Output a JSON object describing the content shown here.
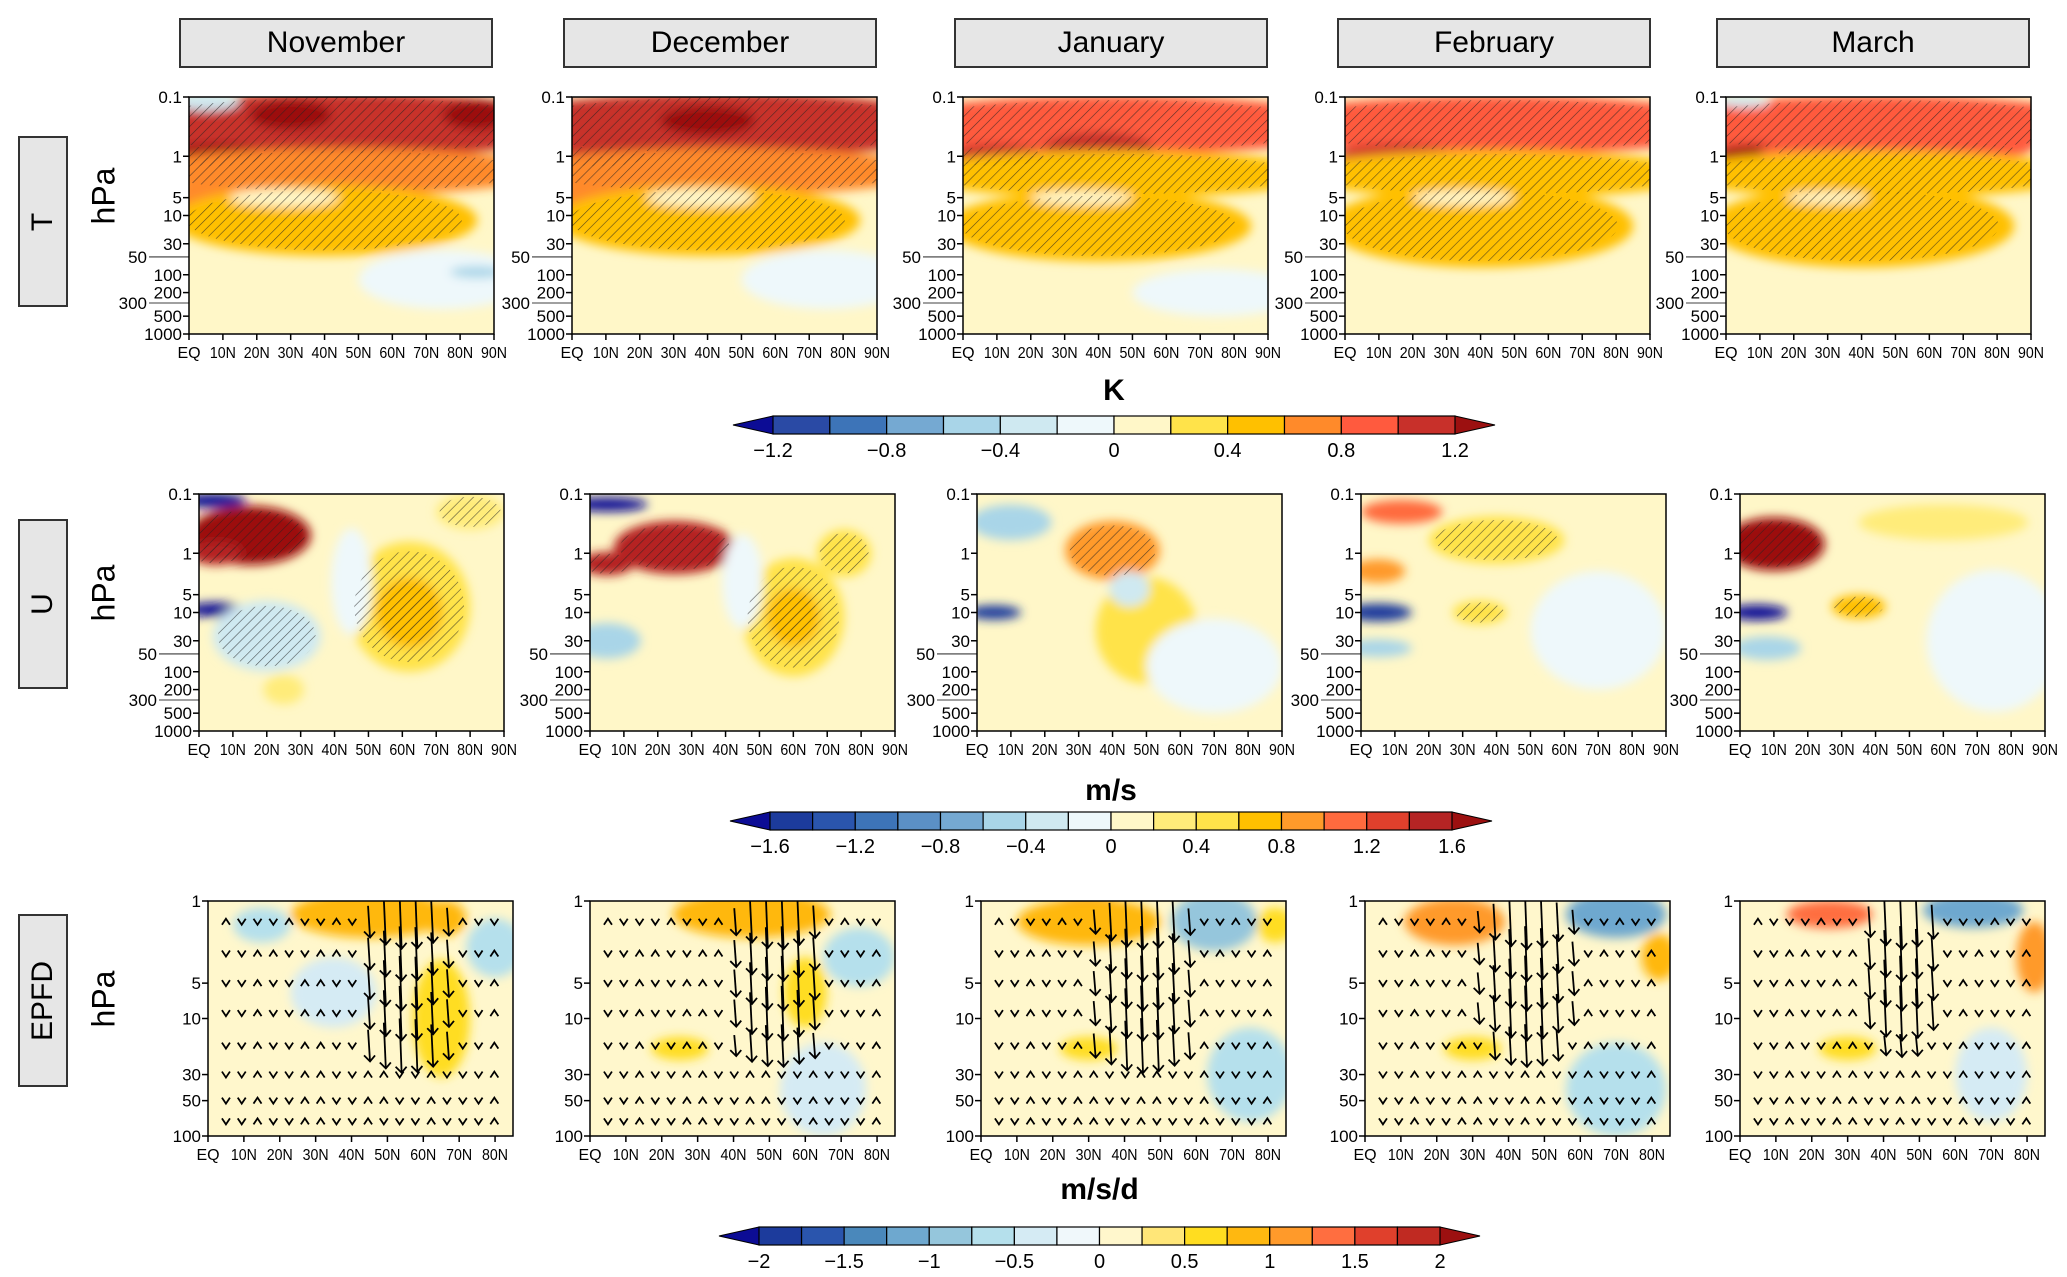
{
  "months": [
    "November",
    "December",
    "January",
    "February",
    "March"
  ],
  "rows": [
    {
      "label": "T",
      "ylabel": "hPa"
    },
    {
      "label": "U",
      "ylabel": "hPa"
    },
    {
      "label": "EPFD",
      "ylabel": "hPa"
    }
  ],
  "chart_data": [
    {
      "type": "heatmap",
      "variable": "T",
      "panels": [
        "November",
        "December",
        "January",
        "February",
        "March"
      ],
      "x_ticks": [
        "EQ",
        "10N",
        "20N",
        "30N",
        "40N",
        "50N",
        "60N",
        "70N",
        "80N",
        "90N"
      ],
      "xlim": [
        0,
        90
      ],
      "y_ticks": [
        "0.1",
        "1",
        "5",
        "10",
        "30",
        "50",
        "100",
        "200",
        "300",
        "500",
        "1000"
      ],
      "ylim": [
        1000,
        0.1
      ],
      "y_scale": "log",
      "ylabel": "hPa",
      "colorbar": {
        "title": "K",
        "min": -1.2,
        "max": 1.2,
        "step": 0.2,
        "tick_labels": [
          "−1.2",
          "−0.8",
          "−0.4",
          "0",
          "0.4",
          "0.8",
          "1.2"
        ],
        "tick_values": [
          -1.2,
          -0.8,
          -0.4,
          0,
          0.4,
          0.8,
          1.2
        ],
        "colors": [
          "#2a4aa5",
          "#3d74b8",
          "#75a9d2",
          "#a9d5e8",
          "#cfe9f1",
          "#eef8fb",
          "#fff7c8",
          "#ffe34a",
          "#ffc000",
          "#ff8a2a",
          "#ff5a3e",
          "#c8302a"
        ],
        "under_color": "#0c0c95",
        "over_color": "#9c1010"
      }
    },
    {
      "type": "heatmap",
      "variable": "U",
      "panels": [
        "November",
        "December",
        "January",
        "February",
        "March"
      ],
      "x_ticks": [
        "EQ",
        "10N",
        "20N",
        "30N",
        "40N",
        "50N",
        "60N",
        "70N",
        "80N",
        "90N"
      ],
      "xlim": [
        0,
        90
      ],
      "y_ticks": [
        "0.1",
        "1",
        "5",
        "10",
        "30",
        "50",
        "100",
        "200",
        "300",
        "500",
        "1000"
      ],
      "ylim": [
        1000,
        0.1
      ],
      "y_scale": "log",
      "ylabel": "hPa",
      "colorbar": {
        "title": "m/s",
        "min": -1.6,
        "max": 1.6,
        "step": 0.2,
        "tick_labels": [
          "−1.6",
          "−1.2",
          "−0.8",
          "−0.4",
          "0",
          "0.4",
          "0.8",
          "1.2",
          "1.6"
        ],
        "tick_values": [
          -1.6,
          -1.2,
          -0.8,
          -0.4,
          0,
          0.4,
          0.8,
          1.2,
          1.6
        ],
        "colors": [
          "#1c3b9c",
          "#2a55ad",
          "#3d74b8",
          "#5b90c6",
          "#75a9d2",
          "#a9d5e8",
          "#cfe9f1",
          "#eef8fb",
          "#fff7c8",
          "#ffec7a",
          "#ffe34a",
          "#ffc000",
          "#ff9a2a",
          "#ff6a3e",
          "#e0402c",
          "#b52424"
        ],
        "under_color": "#0c0c95",
        "over_color": "#9c1010"
      }
    },
    {
      "type": "heatmap",
      "variable": "EPFD",
      "panels": [
        "November",
        "December",
        "January",
        "February",
        "March"
      ],
      "x_ticks": [
        "EQ",
        "10N",
        "20N",
        "30N",
        "40N",
        "50N",
        "60N",
        "70N",
        "80N"
      ],
      "xlim": [
        0,
        85
      ],
      "y_ticks": [
        "1",
        "5",
        "10",
        "30",
        "50",
        "100"
      ],
      "ylim": [
        100,
        1
      ],
      "y_scale": "log",
      "ylabel": "hPa",
      "vectors": "EP flux arrows",
      "colorbar": {
        "title": "m/s/d",
        "min": -2,
        "max": 2,
        "step": 0.25,
        "tick_labels": [
          "−2",
          "−1.5",
          "−1",
          "−0.5",
          "0",
          "0.5",
          "1",
          "1.5",
          "2"
        ],
        "tick_values": [
          -2,
          -1.5,
          -1,
          -0.5,
          0,
          0.5,
          1,
          1.5,
          2
        ],
        "colors": [
          "#1c3b9c",
          "#2a55ad",
          "#4a88bb",
          "#6ea8cf",
          "#95c6dc",
          "#b5e0ec",
          "#d5ebf4",
          "#f0f8fb",
          "#fff7cc",
          "#ffe678",
          "#ffdd20",
          "#ffb810",
          "#ff9a2a",
          "#ff6e40",
          "#e0402c",
          "#c02a22"
        ],
        "under_color": "#0c0c95",
        "over_color": "#9c1010"
      }
    }
  ]
}
